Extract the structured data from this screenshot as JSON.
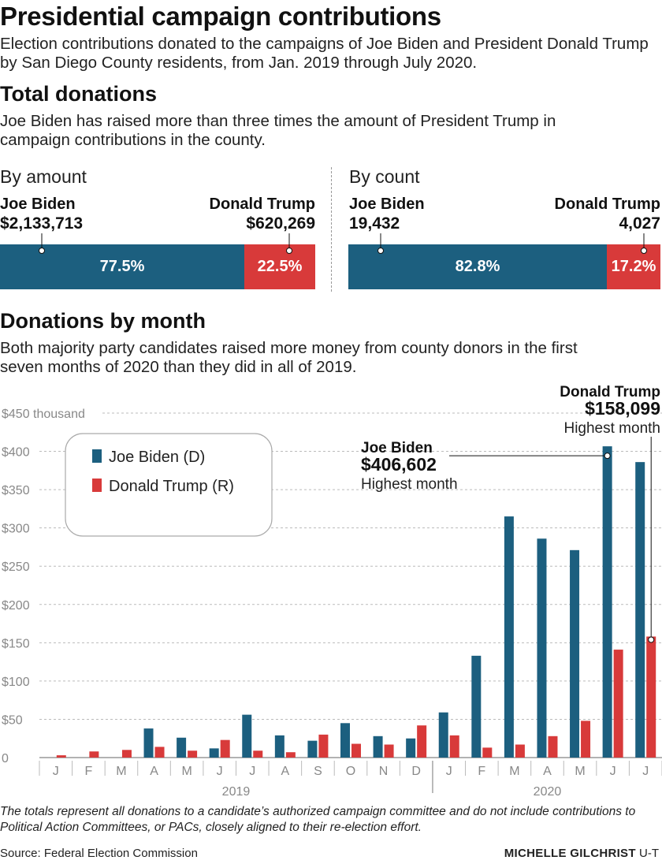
{
  "title": "Presidential campaign contributions",
  "subtitle": "Election contributions donated to the campaigns of Joe Biden and President Donald Trump by San Diego County residents, from Jan. 2019 through July 2020.",
  "total_section": {
    "heading": "Total donations",
    "description": "Joe Biden has raised more than three times the amount of President Trump in campaign contributions in the county.",
    "by_amount": {
      "label": "By amount",
      "biden_name": "Joe Biden",
      "biden_value": "$2,133,713",
      "trump_name": "Donald Trump",
      "trump_value": "$620,269",
      "biden_pct_label": "77.5%",
      "trump_pct_label": "22.5%",
      "biden_share": 0.775
    },
    "by_count": {
      "label": "By count",
      "biden_name": "Joe Biden",
      "biden_value": "19,432",
      "trump_name": "Donald Trump",
      "trump_value": "4,027",
      "biden_pct_label": "82.8%",
      "trump_pct_label": "17.2%",
      "biden_share": 0.828
    }
  },
  "monthly_section": {
    "heading": "Donations by month",
    "description": "Both majority party candidates raised more money from county donors in the first seven months of 2020 than they did in all of 2019."
  },
  "legend": {
    "biden": "Joe Biden (D)",
    "trump": "Donald Trump (R)"
  },
  "annotations": {
    "biden_name": "Joe Biden",
    "biden_value": "$406,602",
    "biden_note": "Highest month",
    "trump_name": "Donald Trump",
    "trump_value": "$158,099",
    "trump_note": "Highest month"
  },
  "colors": {
    "biden": "#1c5f7f",
    "trump": "#d83a3a"
  },
  "chart_data": {
    "type": "bar",
    "categories": [
      "J",
      "F",
      "M",
      "A",
      "M",
      "J",
      "J",
      "A",
      "S",
      "O",
      "N",
      "D",
      "J",
      "F",
      "M",
      "A",
      "M",
      "J",
      "J"
    ],
    "year_labels": [
      "2019",
      "2020"
    ],
    "series": [
      {
        "name": "Joe Biden (D)",
        "values": [
          0,
          0,
          0,
          38,
          26,
          12,
          56,
          29,
          22,
          45,
          28,
          25,
          59,
          133,
          315,
          286,
          271,
          406.602,
          386
        ]
      },
      {
        "name": "Donald Trump (R)",
        "values": [
          3,
          8,
          10,
          14,
          9,
          23,
          9,
          7,
          30,
          18,
          17,
          42,
          29,
          13,
          17,
          28,
          48,
          141,
          158.099
        ]
      }
    ],
    "yticks": [
      {
        "value": 0,
        "label": "0"
      },
      {
        "value": 50,
        "label": "$50"
      },
      {
        "value": 100,
        "label": "$100"
      },
      {
        "value": 150,
        "label": "$150"
      },
      {
        "value": 200,
        "label": "$200"
      },
      {
        "value": 250,
        "label": "$250"
      },
      {
        "value": 300,
        "label": "$300"
      },
      {
        "value": 350,
        "label": "$350"
      },
      {
        "value": 400,
        "label": "$400"
      },
      {
        "value": 450,
        "label": "$450 thousand"
      }
    ],
    "ylim": [
      0,
      450
    ],
    "grid": true,
    "legend_position": "top-left"
  },
  "footnote": "The totals represent all donations to a candidate’s authorized campaign committee and do not include contributions to Political Action Committees, or PACs, closely aligned to their re-election effort.",
  "source": "Source: Federal Election Commission",
  "credit_name": "MICHELLE GILCHRIST",
  "credit_org": "U-T"
}
